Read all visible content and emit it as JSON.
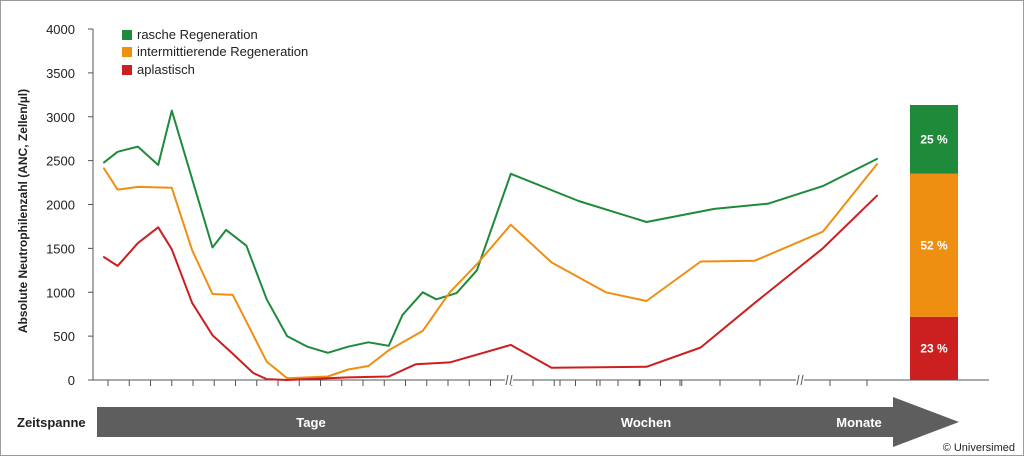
{
  "chart_data": {
    "type": "line",
    "ylabel": "Absolute Neutrophilenzahl (ANC, Zellen/µl)",
    "ylim": [
      0,
      4000
    ],
    "yticks": [
      0,
      500,
      1000,
      1500,
      2000,
      2500,
      3000,
      3500,
      4000
    ],
    "legend_position": "top-left",
    "series": [
      {
        "name": "rasche Regeneration",
        "color": "#1e8a3a",
        "points": [
          [
            0,
            2480
          ],
          [
            1,
            2600
          ],
          [
            2.5,
            2660
          ],
          [
            4,
            2450
          ],
          [
            5,
            3070
          ],
          [
            8,
            1510
          ],
          [
            9,
            1710
          ],
          [
            10.5,
            1530
          ],
          [
            12,
            920
          ],
          [
            13.5,
            500
          ],
          [
            15,
            380
          ],
          [
            16.5,
            310
          ],
          [
            18,
            380
          ],
          [
            19.5,
            430
          ],
          [
            21,
            390
          ],
          [
            22,
            740
          ],
          [
            23.5,
            1000
          ],
          [
            24.5,
            920
          ],
          [
            26,
            990
          ],
          [
            27.5,
            1250
          ],
          [
            30,
            2350
          ],
          [
            35,
            2040
          ],
          [
            40,
            1800
          ],
          [
            45,
            1950
          ],
          [
            49,
            2010
          ],
          [
            53,
            2210
          ],
          [
            57,
            2520
          ]
        ]
      },
      {
        "name": "intermittierende Regeneration",
        "color": "#ef8f12",
        "points": [
          [
            0,
            2410
          ],
          [
            1,
            2170
          ],
          [
            2.5,
            2200
          ],
          [
            5,
            2190
          ],
          [
            6.5,
            1480
          ],
          [
            8,
            980
          ],
          [
            9.5,
            970
          ],
          [
            12,
            210
          ],
          [
            13.5,
            20
          ],
          [
            16.5,
            40
          ],
          [
            18,
            120
          ],
          [
            19.5,
            160
          ],
          [
            21,
            340
          ],
          [
            23.5,
            560
          ],
          [
            25.5,
            1000
          ],
          [
            27.5,
            1320
          ],
          [
            30,
            1770
          ],
          [
            33,
            1340
          ],
          [
            37,
            1000
          ],
          [
            40,
            900
          ],
          [
            44,
            1350
          ],
          [
            48,
            1360
          ],
          [
            53,
            1690
          ],
          [
            57,
            2460
          ]
        ]
      },
      {
        "name": "aplastisch",
        "color": "#cc1f1f",
        "points": [
          [
            0,
            1400
          ],
          [
            1,
            1300
          ],
          [
            2.5,
            1560
          ],
          [
            4,
            1740
          ],
          [
            5,
            1490
          ],
          [
            6.5,
            880
          ],
          [
            8,
            510
          ],
          [
            9.5,
            300
          ],
          [
            11,
            80
          ],
          [
            12,
            10
          ],
          [
            13.5,
            0
          ],
          [
            16.5,
            20
          ],
          [
            18,
            30
          ],
          [
            21,
            40
          ],
          [
            23,
            180
          ],
          [
            25.5,
            200
          ],
          [
            30,
            400
          ],
          [
            33,
            140
          ],
          [
            40,
            150
          ],
          [
            44,
            370
          ],
          [
            48,
            880
          ],
          [
            53,
            1500
          ],
          [
            57,
            2100
          ]
        ]
      }
    ],
    "stacked_bar": {
      "segments": [
        {
          "label": "23 %",
          "value": 23,
          "color": "#cc1f1f"
        },
        {
          "label": "52 %",
          "value": 52,
          "color": "#ef8f12"
        },
        {
          "label": "25 %",
          "value": 25,
          "color": "#1e8a3a"
        }
      ]
    }
  },
  "timeline": {
    "label": "Zeitspanne",
    "segments": [
      "Tage",
      "Wochen",
      "Monate"
    ]
  },
  "copyright": "© Universimed"
}
